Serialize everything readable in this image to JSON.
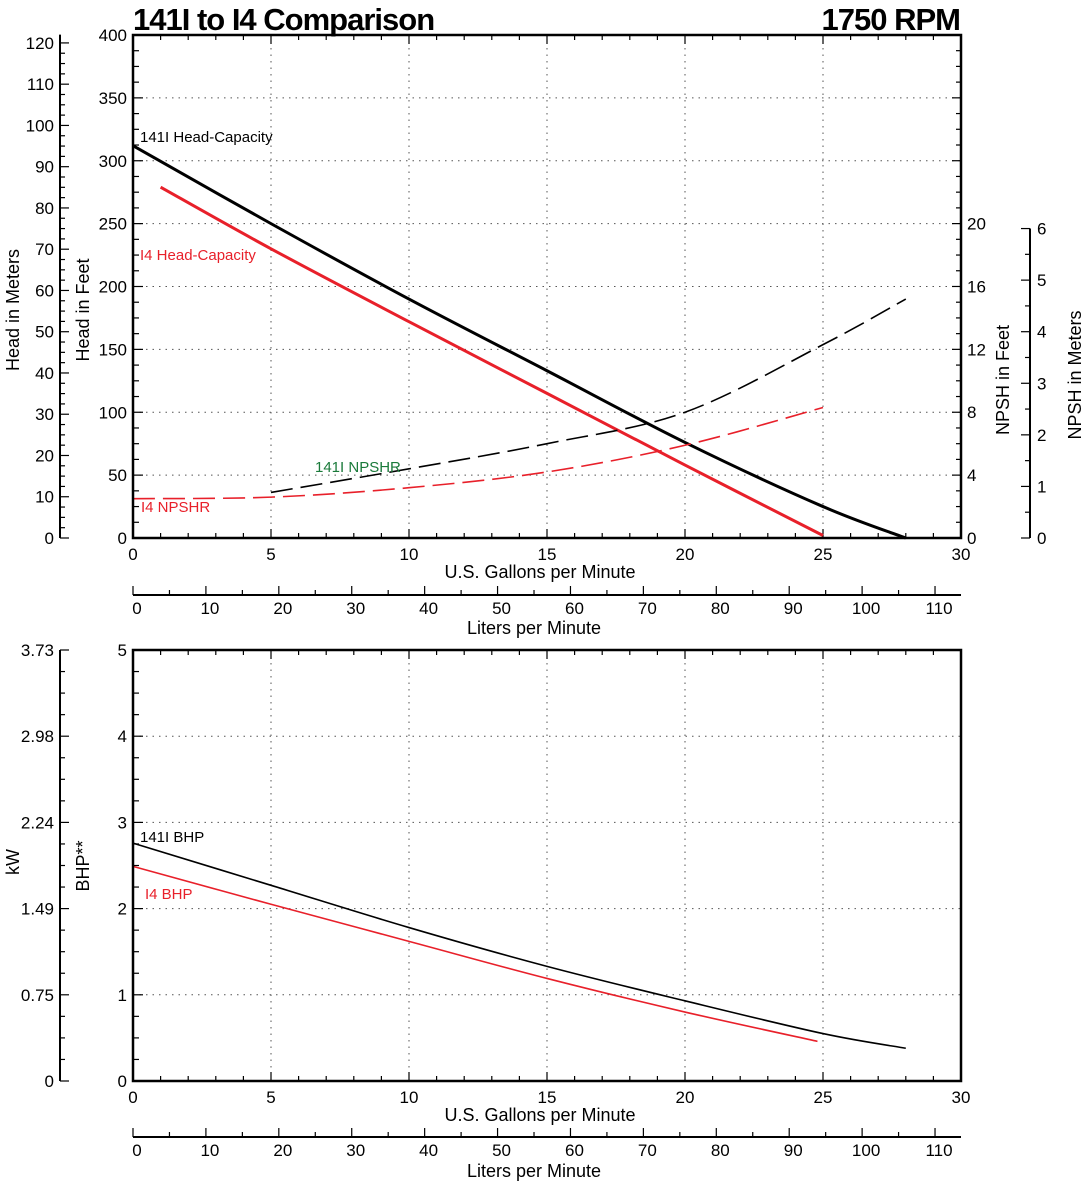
{
  "title": "141I to I4 Comparison",
  "speed": "1750 RPM",
  "colors": {
    "i141": "#000000",
    "i4": "#e8202a",
    "npshr_label_141i": "#1a7a3a"
  },
  "chart_data": [
    {
      "type": "line",
      "xlabel": "U.S. Gallons per Minute",
      "xlabel2": "Liters per Minute",
      "xlim": [
        0,
        30
      ],
      "xticks": [
        0,
        5,
        10,
        15,
        20,
        25,
        30
      ],
      "x2lim": [
        0,
        113.56
      ],
      "x2ticks": [
        0,
        10,
        20,
        30,
        40,
        50,
        60,
        70,
        80,
        90,
        100,
        110
      ],
      "ylabel": "Head in Feet",
      "ylim": [
        0,
        400
      ],
      "yticks": [
        0,
        50,
        100,
        150,
        200,
        250,
        300,
        350,
        400
      ],
      "ylabel_meters": "Head in Meters",
      "yticks_meters": [
        0,
        10,
        20,
        30,
        40,
        50,
        60,
        70,
        80,
        90,
        100,
        110,
        120
      ],
      "y2label": "NPSH in Feet",
      "y2lim": [
        0,
        32
      ],
      "y2ticks": [
        0,
        4,
        8,
        12,
        16,
        20
      ],
      "y3label": "NPSH in Meters",
      "y3ticks": [
        0,
        1,
        2,
        3,
        4,
        5,
        6
      ],
      "grid": true,
      "series": [
        {
          "name": "141I Head-Capacity",
          "axis": "head",
          "style": "solid",
          "color": "#000000",
          "points": [
            [
              0,
              312
            ],
            [
              5,
              250
            ],
            [
              10,
              190
            ],
            [
              15,
              133
            ],
            [
              20,
              76
            ],
            [
              25,
              25
            ],
            [
              28,
              0
            ]
          ]
        },
        {
          "name": "I4 Head-Capacity",
          "axis": "head",
          "style": "solid",
          "color": "#e8202a",
          "points": [
            [
              1,
              279
            ],
            [
              5,
              230
            ],
            [
              10,
              172
            ],
            [
              15,
              115
            ],
            [
              20,
              58
            ],
            [
              25,
              2
            ]
          ]
        },
        {
          "name": "141I NPSHR",
          "axis": "npsh",
          "style": "dashed",
          "color": "#000000",
          "points": [
            [
              5,
              2.9
            ],
            [
              10,
              4.4
            ],
            [
              15,
              6.0
            ],
            [
              20,
              8.0
            ],
            [
              25,
              12.3
            ],
            [
              28,
              15.2
            ]
          ]
        },
        {
          "name": "I4 NPSHR",
          "axis": "npsh",
          "style": "dashed",
          "color": "#e8202a",
          "points": [
            [
              0,
              2.5
            ],
            [
              5,
              2.6
            ],
            [
              10,
              3.2
            ],
            [
              15,
              4.2
            ],
            [
              20,
              5.9
            ],
            [
              25,
              8.3
            ]
          ]
        }
      ]
    },
    {
      "type": "line",
      "xlabel": "U.S. Gallons per Minute",
      "xlabel2": "Liters per Minute",
      "xlim": [
        0,
        30
      ],
      "xticks": [
        0,
        5,
        10,
        15,
        20,
        25,
        30
      ],
      "x2ticks": [
        0,
        10,
        20,
        30,
        40,
        50,
        60,
        70,
        80,
        90,
        100,
        110
      ],
      "ylabel": "BHP**",
      "ylim": [
        0,
        5
      ],
      "yticks": [
        0,
        1,
        2,
        3,
        4,
        5
      ],
      "ylabel_kw": "kW",
      "yticks_kw": [
        "0",
        "0.75",
        "1.49",
        "2.24",
        "2.98",
        "3.73"
      ],
      "grid": true,
      "series": [
        {
          "name": "141I BHP",
          "style": "solid",
          "color": "#000000",
          "points": [
            [
              0,
              2.76
            ],
            [
              5,
              2.27
            ],
            [
              10,
              1.78
            ],
            [
              15,
              1.33
            ],
            [
              20,
              0.93
            ],
            [
              25,
              0.55
            ],
            [
              28,
              0.38
            ]
          ]
        },
        {
          "name": "I4 BHP",
          "style": "solid",
          "color": "#e8202a",
          "points": [
            [
              0,
              2.49
            ],
            [
              5,
              2.05
            ],
            [
              10,
              1.62
            ],
            [
              15,
              1.19
            ],
            [
              20,
              0.8
            ],
            [
              24.8,
              0.46
            ]
          ]
        }
      ]
    }
  ]
}
